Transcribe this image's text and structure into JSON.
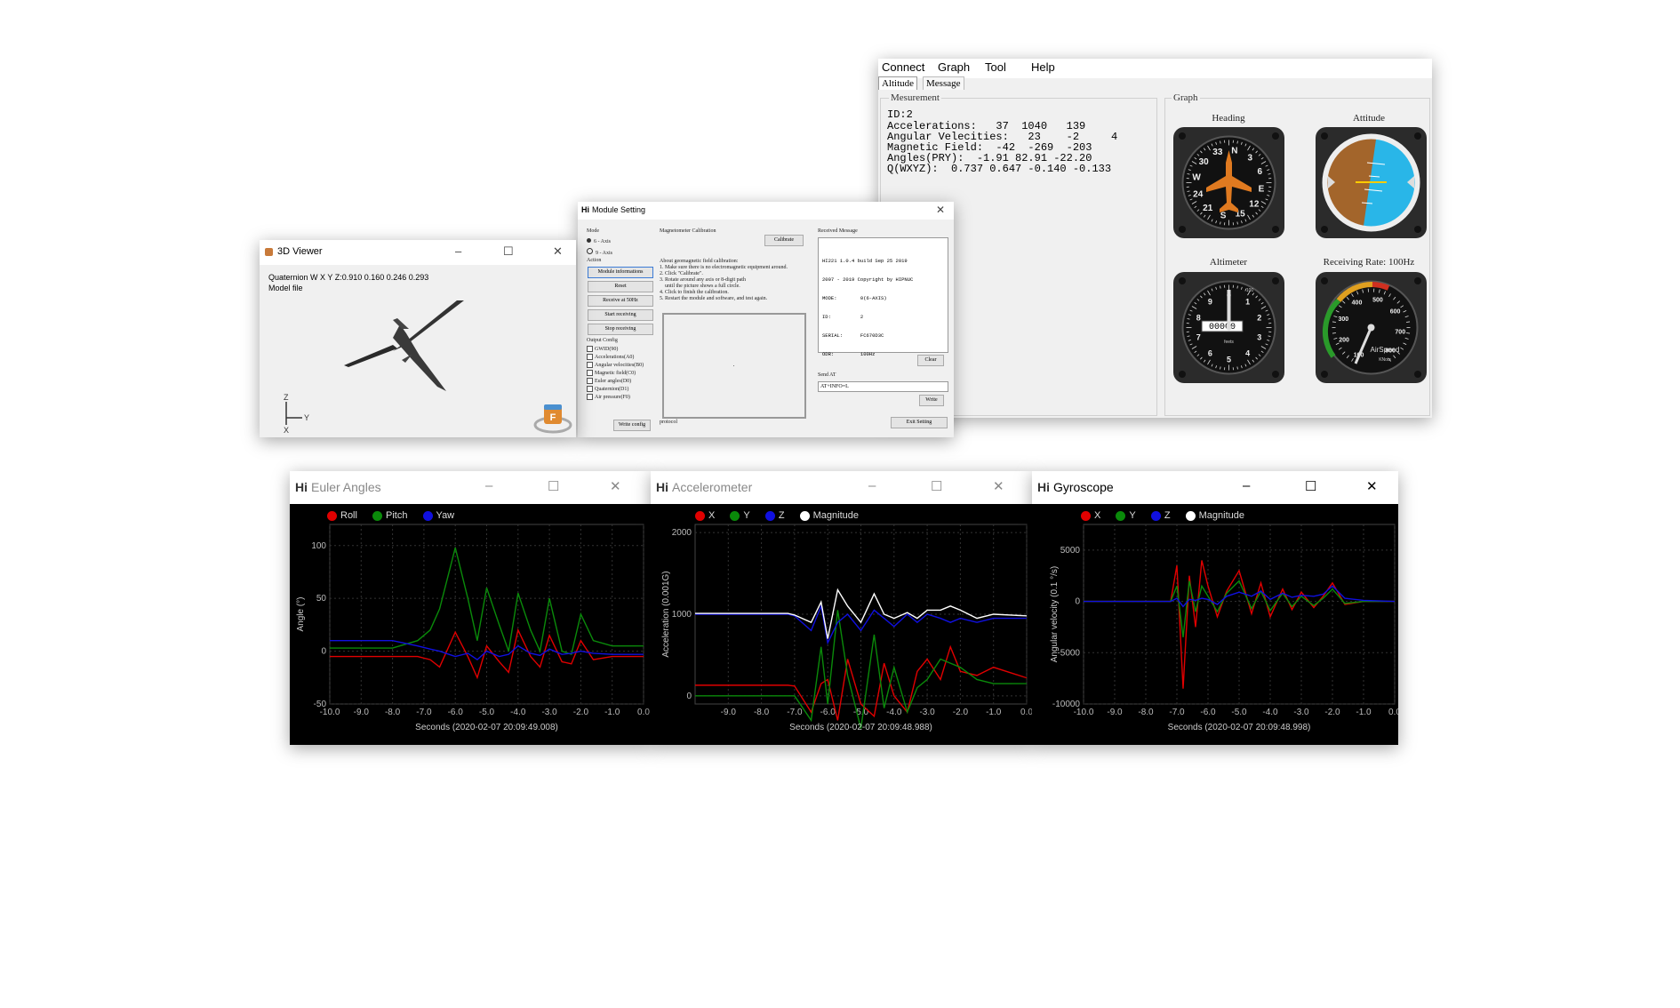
{
  "main": {
    "menu": [
      "Connect",
      "Graph",
      "Tool",
      "Help"
    ],
    "tabs": [
      "Altitude",
      "Message"
    ],
    "measurement_title": "Mesurement",
    "graph_title": "Graph",
    "lines": [
      "ID:2",
      "Accelerations:   37  1040   139",
      "Angular Velecities:   23    -2     4",
      "Magnetic Field:  -42  -269  -203",
      "Angles(PRY):  -1.91 82.91 -22.20",
      "Q(WXYZ):  0.737 0.647 -0.140 -0.133"
    ],
    "gauges": {
      "heading": "Heading",
      "attitude": "Attitude",
      "altimeter": "Altimeter",
      "rate": "Receiving Rate: 100Hz"
    },
    "heading_marks": [
      "N",
      "3",
      "6",
      "E",
      "12",
      "15",
      "S",
      "21",
      "24",
      "W",
      "30",
      "33"
    ],
    "altimeter_numbers": [
      "0",
      "1",
      "2",
      "3",
      "4",
      "5",
      "6",
      "7",
      "8",
      "9"
    ],
    "altimeter_readout": "00000",
    "altimeter_unit": "feets",
    "altimeter_small": "100",
    "airspeed_numbers": [
      "100",
      "200",
      "300",
      "400",
      "500",
      "600",
      "700",
      "800"
    ],
    "airspeed_label": "AirSpeed",
    "airspeed_unit": "KNots"
  },
  "viewer": {
    "title": "3D Viewer",
    "quaternion": "Quaternion W X Y Z:0.910  0.160  0.246  0.293",
    "model_file": "Model file",
    "axis_z": "Z",
    "axis_y": "Y",
    "axis_x": "X",
    "logo_letter": "F"
  },
  "module": {
    "title": "Module Setting",
    "hi": "Hi",
    "mode_label": "Mode",
    "mode_6": "6 - Axis",
    "mode_9": "9 - Axis",
    "action_label": "Action",
    "actions": [
      "Module informations",
      "Reset",
      "Receive at 50Hz",
      "Start receiving",
      "Stop receiving"
    ],
    "output_label": "Output Config",
    "outputs": [
      "GWID(90)",
      "Accelerations(A0)",
      "Angular velocities(B0)",
      "Magnetic field(C0)",
      "Euler angles(D0)",
      "Quaternion(D1)",
      "Air pressure(F0)"
    ],
    "write_config": "Write config",
    "mag_title": "Magnetometer Calibration",
    "calibrate": "Calibrate",
    "mag_instructions": [
      "About geomagnetic field calibration:",
      "1. Make sure there is no electromagnetic equipment around.",
      "2. Click \"Calibrate\".",
      "3. Rotate around any axis or 8-digit path",
      "    until the picture shows a full circle.",
      "4. Click to finish the calibration.",
      "5. Restart the module and software, and test again."
    ],
    "protocol": "protocol",
    "received_title": "Received Message",
    "received": [
      "HI221 1.0.4 build Sep 25 2019",
      "2007 - 2019 Copyright by HIPNUC",
      "MODE:        0(6-AXIS)",
      "ID:          2",
      "SERIAL:      FC670D3C",
      "ODR:         100Hz"
    ],
    "clear": "Clear",
    "send_label": "Send AT",
    "send_value": "AT+INFO=L",
    "write": "Write",
    "exit": "Exit Setting"
  },
  "euler": {
    "hi": "Hi",
    "title": "Euler Angles",
    "ylabel": "Angle (°)",
    "xlabel": "Seconds (2020-02-07 20:09:49.008)",
    "legend": [
      {
        "name": "Roll",
        "color": "#e00000"
      },
      {
        "name": "Pitch",
        "color": "#0a8a0a"
      },
      {
        "name": "Yaw",
        "color": "#1010e0"
      }
    ]
  },
  "accel": {
    "hi": "Hi",
    "title": "Accelerometer",
    "ylabel": "Acceleration (0.001G)",
    "xlabel": "Seconds (2020-02-07 20:09:48.988)",
    "legend": [
      {
        "name": "X",
        "color": "#e00000"
      },
      {
        "name": "Y",
        "color": "#0a8a0a"
      },
      {
        "name": "Z",
        "color": "#1010e0"
      },
      {
        "name": "Magnitude",
        "color": "#ffffff"
      }
    ]
  },
  "gyro": {
    "hi": "Hi",
    "title": "Gyroscope",
    "ylabel": "Angular velocity (0.1 °/s)",
    "xlabel": "Seconds (2020-02-07 20:09:48.998)",
    "legend": [
      {
        "name": "X",
        "color": "#e00000"
      },
      {
        "name": "Y",
        "color": "#0a8a0a"
      },
      {
        "name": "Z",
        "color": "#1010e0"
      },
      {
        "name": "Magnitude",
        "color": "#ffffff"
      }
    ]
  },
  "chart_data": [
    {
      "type": "line",
      "title": "Euler Angles",
      "xlabel": "Seconds (2020-02-07 20:09:49.008)",
      "ylabel": "Angle (°)",
      "xlim": [
        -10,
        0
      ],
      "ylim": [
        -50,
        120
      ],
      "xticks": [
        "-10.0",
        "-9.0",
        "-8.0",
        "-7.0",
        "-6.0",
        "-5.0",
        "-4.0",
        "-3.0",
        "-2.0",
        "-1.0",
        "0.0"
      ],
      "yticks": [
        "100",
        "50",
        "0",
        "-50"
      ],
      "x": [
        -10,
        -9,
        -8,
        -7.2,
        -6.8,
        -6.5,
        -6,
        -5.6,
        -5.3,
        -5,
        -4.6,
        -4.3,
        -4,
        -3.6,
        -3.3,
        -3,
        -2.6,
        -2.3,
        -2,
        -1.6,
        -1,
        0
      ],
      "series": [
        {
          "name": "Roll",
          "values": [
            -5,
            -5,
            -5,
            -5,
            -8,
            -15,
            18,
            -5,
            -25,
            5,
            -10,
            -20,
            20,
            -5,
            -15,
            15,
            -10,
            -12,
            10,
            -8,
            -5,
            -5
          ]
        },
        {
          "name": "Pitch",
          "values": [
            3,
            3,
            3,
            10,
            20,
            40,
            98,
            50,
            10,
            60,
            25,
            0,
            55,
            20,
            0,
            50,
            0,
            -3,
            35,
            10,
            5,
            5
          ]
        },
        {
          "name": "Yaw",
          "values": [
            10,
            10,
            10,
            5,
            2,
            0,
            -5,
            -2,
            -8,
            0,
            -5,
            -3,
            5,
            -2,
            -4,
            2,
            -3,
            -2,
            0,
            -2,
            -3,
            -3
          ]
        }
      ]
    },
    {
      "type": "line",
      "title": "Accelerometer",
      "xlabel": "Seconds (2020-02-07 20:09:48.988)",
      "ylabel": "Acceleration (0.001G)",
      "xlim": [
        -10,
        0
      ],
      "ylim": [
        -100,
        2100
      ],
      "xticks": [
        "-9.0",
        "-8.0",
        "-7.0",
        "-6.0",
        "-5.0",
        "-4.0",
        "-3.0",
        "-2.0",
        "-1.0",
        "0.0"
      ],
      "yticks": [
        "2000",
        "1000",
        "0"
      ],
      "x": [
        -10,
        -9,
        -8,
        -7.2,
        -7,
        -6.5,
        -6.2,
        -6,
        -5.7,
        -5.4,
        -5,
        -4.6,
        -4.3,
        -4,
        -3.6,
        -3.3,
        -3,
        -2.6,
        -2.3,
        -2,
        -1.5,
        -1,
        0
      ],
      "series": [
        {
          "name": "X",
          "values": [
            130,
            130,
            130,
            130,
            120,
            -200,
            150,
            200,
            -300,
            450,
            -100,
            -250,
            400,
            0,
            -200,
            300,
            450,
            200,
            600,
            300,
            250,
            350,
            220
          ]
        },
        {
          "name": "Y",
          "values": [
            0,
            0,
            0,
            0,
            0,
            -300,
            600,
            -100,
            1050,
            250,
            -400,
            750,
            -150,
            350,
            -200,
            100,
            200,
            450,
            400,
            350,
            200,
            150,
            150
          ]
        },
        {
          "name": "Z",
          "values": [
            1000,
            1000,
            1000,
            1000,
            980,
            800,
            1100,
            650,
            900,
            1000,
            800,
            1050,
            950,
            850,
            1000,
            900,
            1000,
            950,
            900,
            950,
            900,
            950,
            950
          ]
        },
        {
          "name": "Magnitude",
          "values": [
            1010,
            1010,
            1010,
            1010,
            990,
            900,
            1150,
            700,
            1300,
            1100,
            900,
            1250,
            1000,
            950,
            1020,
            950,
            1050,
            1050,
            1100,
            1050,
            950,
            1000,
            980
          ]
        }
      ]
    },
    {
      "type": "line",
      "title": "Gyroscope",
      "xlabel": "Seconds (2020-02-07 20:09:48.998)",
      "ylabel": "Angular velocity (0.1 °/s)",
      "xlim": [
        -10,
        0
      ],
      "ylim": [
        -10000,
        7500
      ],
      "xticks": [
        "-10.0",
        "-9.0",
        "-8.0",
        "-7.0",
        "-6.0",
        "-5.0",
        "-4.0",
        "-3.0",
        "-2.0",
        "-1.0",
        "0.0"
      ],
      "yticks": [
        "5000",
        "0",
        "-5000",
        "-10000"
      ],
      "x": [
        -10,
        -9,
        -8,
        -7.2,
        -7,
        -6.8,
        -6.6,
        -6.4,
        -6.2,
        -6,
        -5.7,
        -5.4,
        -5,
        -4.6,
        -4.3,
        -4,
        -3.6,
        -3.3,
        -3,
        -2.6,
        -2.3,
        -2,
        -1.6,
        -1,
        0
      ],
      "series": [
        {
          "name": "X",
          "values": [
            0,
            0,
            0,
            0,
            3500,
            -8500,
            2500,
            -2500,
            4000,
            1500,
            -1500,
            1000,
            3000,
            -1200,
            1800,
            -1500,
            1200,
            -800,
            900,
            -600,
            500,
            1800,
            -300,
            0,
            0
          ]
        },
        {
          "name": "Y",
          "values": [
            0,
            0,
            0,
            0,
            1500,
            -3500,
            2000,
            -1000,
            1500,
            500,
            -1000,
            800,
            2000,
            -700,
            1000,
            -900,
            800,
            -500,
            500,
            -400,
            300,
            1200,
            -200,
            0,
            0
          ]
        },
        {
          "name": "Z",
          "values": [
            0,
            0,
            0,
            0,
            300,
            -500,
            200,
            100,
            300,
            200,
            -300,
            500,
            900,
            500,
            1000,
            200,
            800,
            400,
            600,
            500,
            700,
            1500,
            300,
            100,
            0
          ]
        }
      ]
    }
  ]
}
